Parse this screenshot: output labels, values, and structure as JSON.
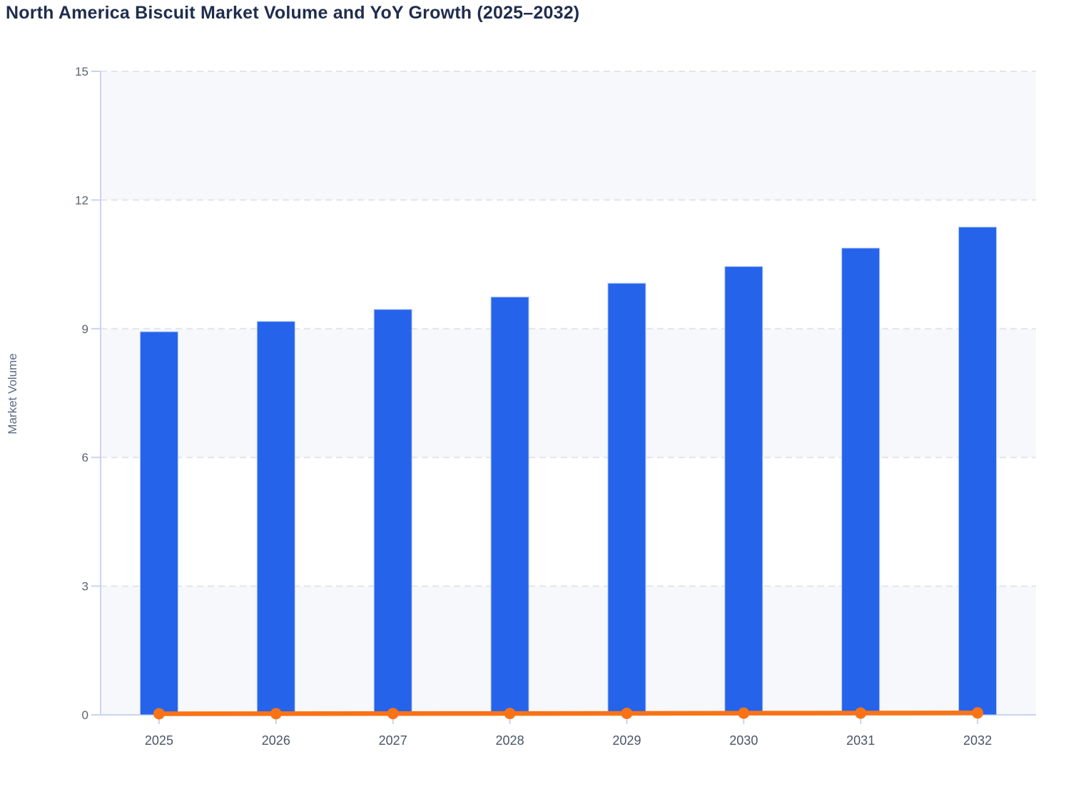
{
  "title": "North America Biscuit Market Volume and YoY Growth (2025–2032)",
  "colors": {
    "title_text": "#1f2d4d",
    "bar": "#2563eb",
    "bar_edge": "#b5c8f4",
    "line": "#f97316",
    "axis": "#c9d4f0",
    "grid": "#e3e5ea",
    "band": "#f7f8fb",
    "band_alt": "#ffffff",
    "y_tick_label": "#5b6472",
    "x_tick_label": "#4a5568",
    "axis_title": "#5b6b85"
  },
  "chart_data": {
    "type": "bar",
    "combo": "bar+line",
    "title": "North America Biscuit Market Volume and YoY Growth (2025–2032)",
    "categories": [
      "2025",
      "2026",
      "2027",
      "2028",
      "2029",
      "2030",
      "2031",
      "2032"
    ],
    "series": [
      {
        "name": "Market Volume",
        "type": "bar",
        "values": [
          8.93,
          9.17,
          9.45,
          9.74,
          10.06,
          10.45,
          10.88,
          11.37
        ]
      },
      {
        "name": "YoY Growth",
        "type": "line",
        "values": [
          0.025,
          0.027,
          0.03,
          0.031,
          0.033,
          0.039,
          0.041,
          0.045
        ]
      }
    ],
    "xlabel": "",
    "ylabel": "Market Volume",
    "ylim": [
      0,
      15
    ],
    "yticks": [
      0,
      3,
      6,
      9,
      12,
      15
    ],
    "grid": "dashed horizontal gridlines, alternating shaded bands",
    "legend": "none"
  }
}
